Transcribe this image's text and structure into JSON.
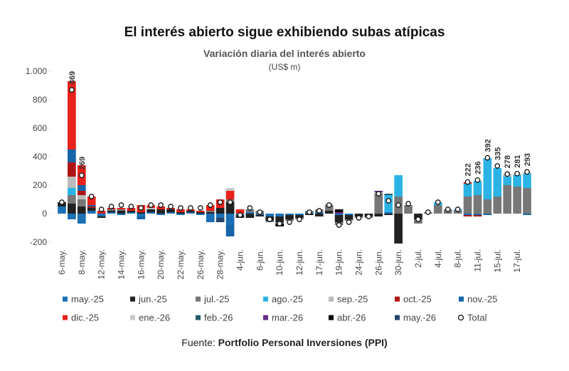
{
  "chart_data": {
    "type": "stacked-bar",
    "title": "El interés abierto sigue exhibiendo subas atípicas",
    "subtitle": "Variación diaria del interés abierto",
    "y_label": "(US$ m)",
    "source_prefix": "Fuente:",
    "source": "Portfolio Personal Inversiones (PPI)",
    "categories": [
      "6-may.",
      null,
      "8-may.",
      null,
      "12-may.",
      null,
      "14-may.",
      null,
      "16-may.",
      null,
      "20-may.",
      null,
      "22-may.",
      null,
      "26-may.",
      null,
      "28-may.",
      null,
      "4-jun.",
      null,
      "6-jun.",
      null,
      "10-jun.",
      null,
      "12-jun.",
      null,
      "17-jun.",
      null,
      "19-jun.",
      null,
      "24-jun.",
      null,
      "26-jun.",
      null,
      "30-jun.",
      null,
      "2-jul.",
      null,
      "4-jul.",
      null,
      "8-jul.",
      null,
      "11-jul.",
      null,
      "15-jul.",
      null,
      "17-jul.",
      null
    ],
    "ylim": [
      -200,
      1000
    ],
    "yticks": [
      -200,
      0,
      200,
      400,
      600,
      800,
      {
        "value": 1000,
        "label": "1.000"
      }
    ],
    "grid": false,
    "series": [
      {
        "name": "may.-25",
        "color": "#1a6fb5",
        "values": [
          50,
          -40,
          -70,
          20,
          -20,
          10,
          -10,
          10,
          -20,
          10,
          -10,
          10,
          -10,
          10,
          -10,
          -60,
          -30,
          -80,
          -10,
          10,
          -10,
          -20,
          -20,
          -10,
          -10,
          10,
          10,
          0,
          -10,
          -10,
          0,
          0,
          0,
          10,
          0,
          0,
          0,
          0,
          0,
          0,
          0,
          -10,
          -10,
          0,
          0,
          0,
          0,
          -10
        ]
      },
      {
        "name": "jun.-25",
        "color": "#222222",
        "values": [
          30,
          70,
          50,
          20,
          -10,
          10,
          20,
          10,
          10,
          20,
          30,
          20,
          10,
          10,
          10,
          10,
          40,
          80,
          -20,
          -30,
          -10,
          -30,
          -40,
          -30,
          -20,
          -10,
          -20,
          20,
          -50,
          -30,
          -20,
          -20,
          -20,
          -10,
          -210,
          0,
          -40,
          0,
          0,
          0,
          0,
          0,
          0,
          0,
          0,
          0,
          0,
          0
        ]
      },
      {
        "name": "jul.-25",
        "color": "#777777",
        "values": [
          0,
          60,
          50,
          0,
          0,
          10,
          10,
          0,
          0,
          0,
          0,
          0,
          0,
          0,
          0,
          10,
          0,
          20,
          0,
          20,
          20,
          -10,
          -10,
          -10,
          -10,
          10,
          20,
          40,
          -20,
          -10,
          -10,
          -10,
          140,
          0,
          120,
          60,
          -30,
          10,
          60,
          30,
          20,
          120,
          130,
          100,
          120,
          200,
          190,
          180
        ]
      },
      {
        "name": "ago.-25",
        "color": "#2bb3e6",
        "values": [
          0,
          50,
          0,
          0,
          0,
          0,
          0,
          0,
          0,
          0,
          0,
          0,
          0,
          0,
          0,
          0,
          0,
          0,
          0,
          0,
          0,
          0,
          0,
          0,
          0,
          0,
          0,
          0,
          0,
          0,
          0,
          0,
          0,
          120,
          150,
          0,
          0,
          0,
          20,
          0,
          10,
          90,
          100,
          290,
          200,
          60,
          80,
          100
        ]
      },
      {
        "name": "sep.-25",
        "color": "#bbbbbb",
        "values": [
          0,
          80,
          30,
          0,
          0,
          0,
          0,
          0,
          0,
          10,
          0,
          0,
          0,
          0,
          0,
          0,
          0,
          0,
          0,
          0,
          0,
          0,
          0,
          0,
          0,
          0,
          0,
          0,
          0,
          0,
          0,
          0,
          10,
          0,
          0,
          0,
          0,
          0,
          0,
          0,
          0,
          0,
          0,
          0,
          0,
          20,
          10,
          10
        ]
      },
      {
        "name": "oct.-25",
        "color": "#b01515",
        "values": [
          0,
          100,
          30,
          10,
          0,
          0,
          0,
          0,
          0,
          0,
          0,
          0,
          0,
          0,
          0,
          0,
          0,
          0,
          0,
          0,
          0,
          0,
          0,
          0,
          0,
          0,
          0,
          0,
          0,
          0,
          0,
          0,
          0,
          0,
          0,
          0,
          0,
          0,
          0,
          0,
          0,
          -10,
          -10,
          0,
          0,
          0,
          0,
          0
        ]
      },
      {
        "name": "nov.-25",
        "color": "#1565a8",
        "values": [
          0,
          90,
          40,
          10,
          0,
          0,
          0,
          0,
          -20,
          0,
          0,
          0,
          0,
          0,
          0,
          0,
          0,
          -80,
          0,
          0,
          0,
          0,
          0,
          0,
          0,
          0,
          0,
          0,
          0,
          0,
          0,
          0,
          0,
          0,
          0,
          0,
          0,
          0,
          0,
          0,
          0,
          0,
          0,
          -10,
          0,
          0,
          0,
          0
        ]
      },
      {
        "name": "dic.-25",
        "color": "#e8221b",
        "values": [
          0,
          480,
          140,
          60,
          20,
          10,
          10,
          20,
          50,
          20,
          20,
          10,
          20,
          10,
          10,
          40,
          60,
          60,
          30,
          0,
          0,
          0,
          0,
          0,
          0,
          0,
          0,
          0,
          0,
          0,
          0,
          0,
          0,
          0,
          0,
          0,
          0,
          0,
          0,
          0,
          0,
          10,
          0,
          0,
          0,
          0,
          0,
          0
        ]
      },
      {
        "name": "ene.-26",
        "color": "#c8c8c8",
        "values": [
          0,
          0,
          0,
          0,
          0,
          0,
          0,
          0,
          0,
          0,
          0,
          0,
          0,
          0,
          0,
          0,
          0,
          20,
          0,
          0,
          0,
          0,
          0,
          0,
          0,
          0,
          0,
          10,
          0,
          0,
          0,
          0,
          0,
          0,
          0,
          0,
          0,
          0,
          0,
          0,
          0,
          0,
          0,
          0,
          0,
          0,
          0,
          0
        ]
      },
      {
        "name": "feb.-26",
        "color": "#235d6b",
        "values": [
          0,
          0,
          0,
          0,
          0,
          0,
          0,
          0,
          0,
          0,
          0,
          0,
          0,
          0,
          0,
          0,
          0,
          0,
          0,
          0,
          0,
          0,
          0,
          0,
          0,
          0,
          0,
          0,
          0,
          0,
          0,
          0,
          0,
          10,
          0,
          0,
          0,
          0,
          0,
          0,
          0,
          0,
          0,
          0,
          0,
          0,
          0,
          0
        ]
      },
      {
        "name": "mar.-26",
        "color": "#6a2c8a",
        "values": [
          0,
          0,
          0,
          0,
          0,
          0,
          0,
          0,
          0,
          0,
          0,
          0,
          0,
          0,
          0,
          0,
          0,
          0,
          0,
          0,
          0,
          0,
          0,
          0,
          0,
          0,
          0,
          0,
          10,
          0,
          0,
          0,
          10,
          0,
          0,
          0,
          0,
          0,
          0,
          0,
          0,
          0,
          0,
          0,
          0,
          0,
          0,
          0
        ]
      },
      {
        "name": "abr.-26",
        "color": "#000000",
        "values": [
          0,
          0,
          0,
          0,
          0,
          0,
          0,
          0,
          0,
          0,
          0,
          0,
          0,
          0,
          0,
          0,
          0,
          0,
          0,
          0,
          0,
          0,
          -20,
          0,
          0,
          0,
          0,
          0,
          20,
          0,
          0,
          0,
          0,
          0,
          0,
          0,
          0,
          0,
          0,
          0,
          0,
          0,
          0,
          0,
          0,
          0,
          0,
          0
        ]
      },
      {
        "name": "may.-26",
        "color": "#24446a",
        "values": [
          0,
          0,
          0,
          0,
          0,
          0,
          0,
          0,
          0,
          0,
          0,
          0,
          0,
          0,
          0,
          0,
          -30,
          0,
          0,
          0,
          0,
          0,
          0,
          0,
          0,
          0,
          0,
          0,
          0,
          0,
          0,
          0,
          0,
          0,
          0,
          0,
          0,
          0,
          0,
          0,
          0,
          0,
          0,
          0,
          0,
          0,
          0,
          0
        ]
      }
    ],
    "total": {
      "name": "Total",
      "color": "#ffffff",
      "values": [
        80,
        869,
        269,
        120,
        30,
        50,
        60,
        50,
        40,
        60,
        60,
        50,
        40,
        40,
        40,
        60,
        80,
        80,
        -10,
        40,
        10,
        -40,
        -70,
        -60,
        -40,
        10,
        20,
        60,
        -80,
        -60,
        -30,
        -20,
        140,
        90,
        60,
        70,
        -40,
        10,
        80,
        30,
        30,
        222,
        236,
        392,
        335,
        278,
        281,
        293
      ],
      "value_labels": [
        null,
        "869",
        "269",
        null,
        null,
        null,
        null,
        null,
        null,
        null,
        null,
        null,
        null,
        null,
        null,
        null,
        null,
        null,
        null,
        null,
        null,
        null,
        null,
        null,
        null,
        null,
        null,
        null,
        null,
        null,
        null,
        null,
        null,
        null,
        null,
        null,
        null,
        null,
        null,
        null,
        null,
        "222",
        "236",
        "392",
        "335",
        "278",
        "281",
        "293"
      ]
    }
  }
}
